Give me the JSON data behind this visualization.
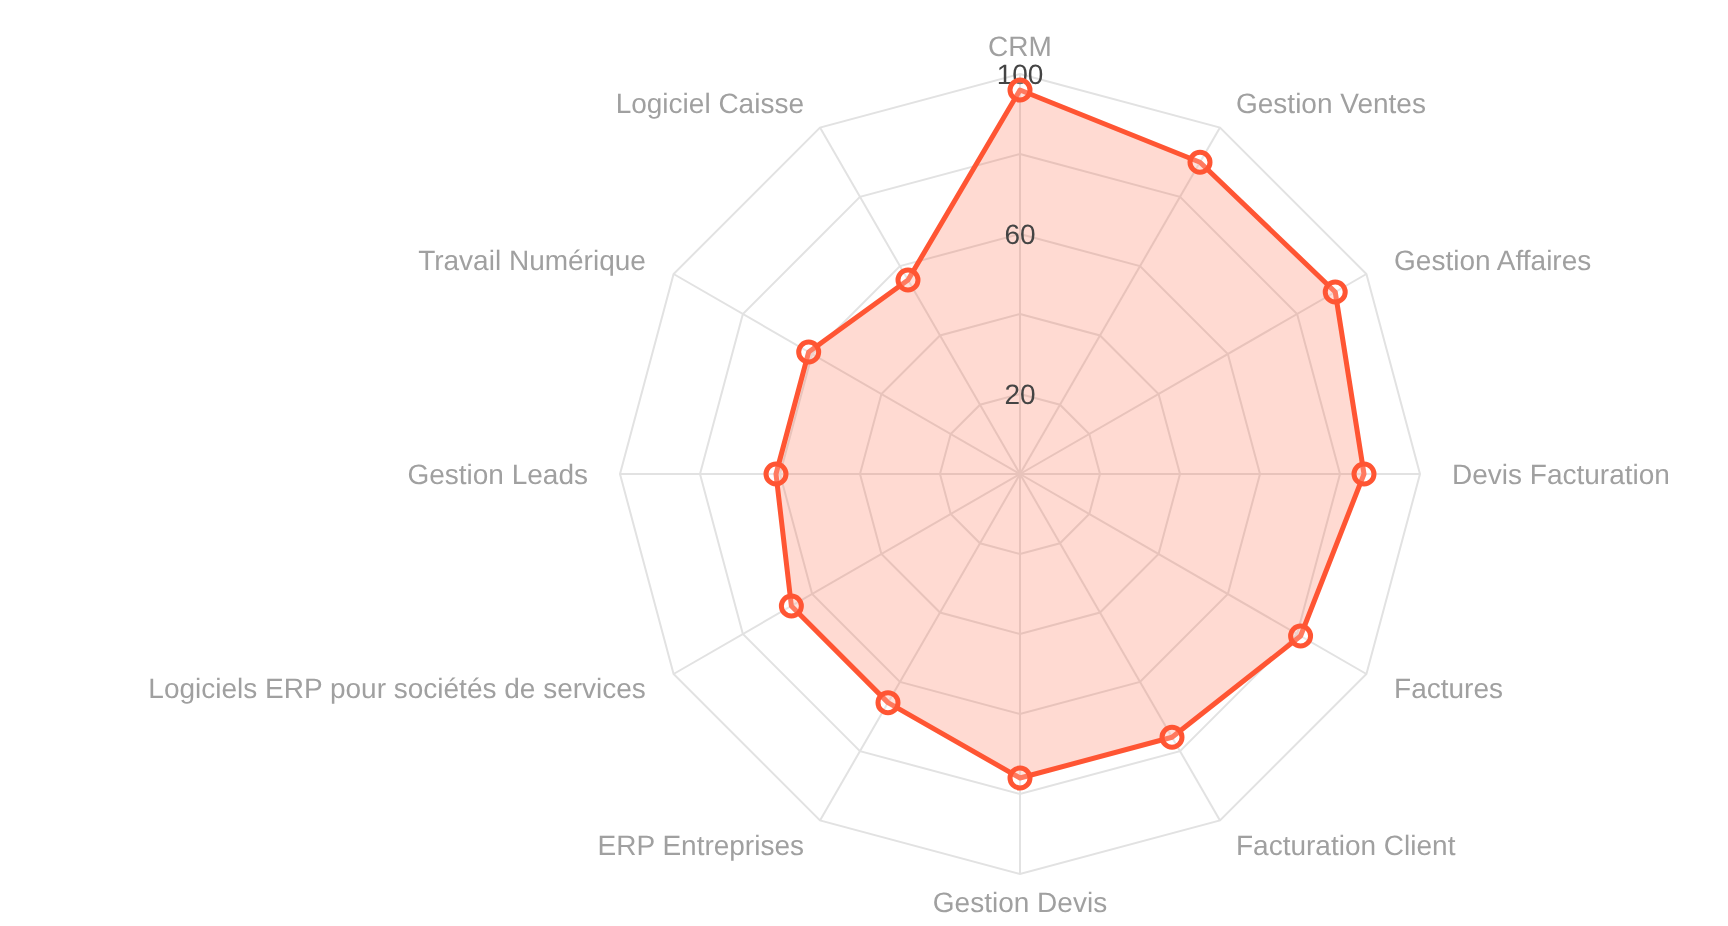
{
  "chart_data": {
    "type": "radar",
    "categories": [
      "CRM",
      "Gestion Ventes",
      "Gestion Affaires",
      "Devis Facturation",
      "Factures",
      "Facturation Client",
      "Gestion Devis",
      "ERP Entreprises",
      "Logiciels ERP pour sociétés de services",
      "Gestion Leads",
      "Travail Numérique",
      "Logiciel Caisse"
    ],
    "series": [
      {
        "color": "#ff5533",
        "values": [
          96,
          90,
          91,
          86,
          81,
          76,
          76,
          66,
          66,
          61,
          61,
          56
        ]
      }
    ],
    "ylim": [
      0,
      100
    ],
    "yticks": [
      20,
      60,
      100
    ],
    "marker": "circle",
    "grid": true
  }
}
